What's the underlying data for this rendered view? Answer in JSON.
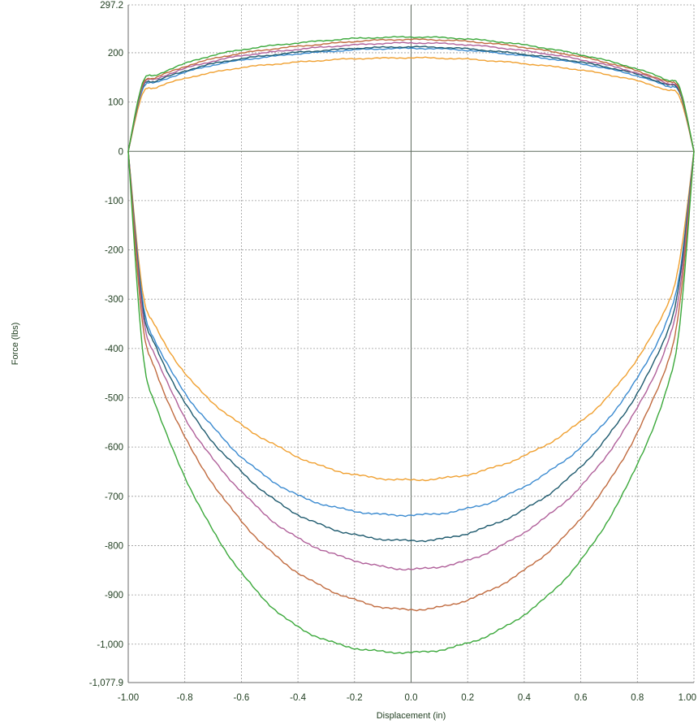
{
  "chart_data": {
    "type": "line",
    "title": "",
    "xlabel": "Displacement (in)",
    "ylabel": "Force (lbs)",
    "xlim": [
      -1.0,
      1.0
    ],
    "ylim": [
      -1077.9,
      297.2
    ],
    "x_ticks": [
      -1.0,
      -0.8,
      -0.6,
      -0.4,
      -0.2,
      0.0,
      0.2,
      0.4,
      0.6,
      0.8,
      1.0
    ],
    "x_tick_labels": [
      "-1.00",
      "-0.8",
      "-0.6",
      "-0.4",
      "-0.2",
      "0.0",
      "0.2",
      "0.4",
      "0.6",
      "0.8",
      "1.00"
    ],
    "y_ticks": [
      297.2,
      200,
      100,
      0,
      -100,
      -200,
      -300,
      -400,
      -500,
      -600,
      -700,
      -800,
      -900,
      -1000,
      -1077.9
    ],
    "y_tick_labels": [
      "297.2",
      "200",
      "100",
      "0",
      "-100",
      "-200",
      "-300",
      "-400",
      "-500",
      "-600",
      "-700",
      "-800",
      "-900",
      "-1,000",
      "-1,077.9"
    ],
    "grid": true,
    "legend": "none",
    "series": [
      {
        "color": "#f0a030",
        "x": [
          -1.0,
          -0.95,
          -0.9,
          -0.8,
          -0.7,
          -0.6,
          -0.5,
          -0.4,
          -0.3,
          -0.2,
          -0.1,
          0.0,
          0.1,
          0.2,
          0.3,
          0.4,
          0.5,
          0.6,
          0.7,
          0.8,
          0.9,
          0.95,
          1.0
        ],
        "rebound": [
          0,
          115,
          130,
          148,
          160,
          170,
          176,
          181,
          185,
          188,
          189,
          190,
          189,
          187,
          183,
          178,
          172,
          165,
          155,
          143,
          125,
          110,
          0
        ],
        "compression": [
          0,
          -280,
          -360,
          -450,
          -510,
          -555,
          -590,
          -620,
          -642,
          -656,
          -664,
          -667,
          -664,
          -656,
          -640,
          -618,
          -588,
          -548,
          -495,
          -420,
          -320,
          -220,
          0
        ]
      },
      {
        "color": "#3a8ad0",
        "x": [
          -1.0,
          -0.95,
          -0.9,
          -0.8,
          -0.7,
          -0.6,
          -0.5,
          -0.4,
          -0.3,
          -0.2,
          -0.1,
          0.0,
          0.1,
          0.2,
          0.3,
          0.4,
          0.5,
          0.6,
          0.7,
          0.8,
          0.9,
          0.95,
          1.0
        ],
        "rebound": [
          0,
          125,
          140,
          160,
          175,
          185,
          192,
          198,
          202,
          206,
          208,
          209,
          208,
          205,
          200,
          194,
          187,
          178,
          167,
          153,
          133,
          118,
          0
        ],
        "compression": [
          0,
          -300,
          -390,
          -490,
          -560,
          -620,
          -665,
          -698,
          -718,
          -730,
          -737,
          -738,
          -735,
          -725,
          -708,
          -680,
          -645,
          -600,
          -540,
          -460,
          -350,
          -245,
          0
        ]
      },
      {
        "color": "#1e5a6e",
        "x": [
          -1.0,
          -0.95,
          -0.9,
          -0.8,
          -0.7,
          -0.6,
          -0.5,
          -0.4,
          -0.3,
          -0.2,
          -0.1,
          0.0,
          0.1,
          0.2,
          0.3,
          0.4,
          0.5,
          0.6,
          0.7,
          0.8,
          0.9,
          0.95,
          1.0
        ],
        "rebound": [
          0,
          128,
          143,
          163,
          178,
          188,
          195,
          201,
          205,
          209,
          211,
          212,
          211,
          208,
          203,
          197,
          190,
          181,
          170,
          156,
          136,
          120,
          0
        ],
        "compression": [
          0,
          -310,
          -400,
          -510,
          -590,
          -650,
          -700,
          -737,
          -762,
          -778,
          -787,
          -790,
          -787,
          -775,
          -755,
          -727,
          -690,
          -640,
          -575,
          -490,
          -375,
          -260,
          0
        ]
      },
      {
        "color": "#b0609a",
        "x": [
          -1.0,
          -0.95,
          -0.9,
          -0.8,
          -0.7,
          -0.6,
          -0.5,
          -0.4,
          -0.3,
          -0.2,
          -0.1,
          0.0,
          0.1,
          0.2,
          0.3,
          0.4,
          0.5,
          0.6,
          0.7,
          0.8,
          0.9,
          0.95,
          1.0
        ],
        "rebound": [
          0,
          131,
          147,
          168,
          183,
          194,
          201,
          207,
          212,
          216,
          219,
          220,
          219,
          216,
          211,
          204,
          196,
          186,
          174,
          159,
          139,
          122,
          0
        ],
        "compression": [
          0,
          -325,
          -420,
          -540,
          -625,
          -690,
          -745,
          -785,
          -812,
          -830,
          -843,
          -848,
          -843,
          -830,
          -806,
          -773,
          -732,
          -680,
          -610,
          -520,
          -400,
          -280,
          0
        ]
      },
      {
        "color": "#c06a3e",
        "x": [
          -1.0,
          -0.95,
          -0.9,
          -0.8,
          -0.7,
          -0.6,
          -0.5,
          -0.4,
          -0.3,
          -0.2,
          -0.1,
          0.0,
          0.1,
          0.2,
          0.3,
          0.4,
          0.5,
          0.6,
          0.7,
          0.8,
          0.9,
          0.95,
          1.0
        ],
        "rebound": [
          0,
          133,
          150,
          172,
          188,
          199,
          207,
          213,
          218,
          223,
          226,
          227,
          226,
          223,
          218,
          211,
          202,
          192,
          179,
          163,
          142,
          125,
          0
        ],
        "compression": [
          0,
          -345,
          -450,
          -580,
          -675,
          -750,
          -810,
          -855,
          -887,
          -910,
          -925,
          -930,
          -925,
          -910,
          -885,
          -850,
          -805,
          -745,
          -670,
          -570,
          -440,
          -310,
          0
        ]
      },
      {
        "color": "#3aa83a",
        "x": [
          -1.0,
          -0.95,
          -0.9,
          -0.8,
          -0.7,
          -0.6,
          -0.5,
          -0.4,
          -0.3,
          -0.2,
          -0.1,
          0.0,
          0.1,
          0.2,
          0.3,
          0.4,
          0.5,
          0.6,
          0.7,
          0.8,
          0.9,
          0.95,
          1.0
        ],
        "rebound": [
          0,
          138,
          155,
          178,
          195,
          206,
          214,
          220,
          225,
          229,
          231,
          232,
          231,
          228,
          223,
          216,
          207,
          196,
          183,
          167,
          146,
          128,
          0
        ],
        "compression": [
          0,
          -400,
          -520,
          -660,
          -770,
          -855,
          -920,
          -965,
          -992,
          -1008,
          -1015,
          -1017,
          -1012,
          -998,
          -975,
          -940,
          -893,
          -830,
          -745,
          -635,
          -490,
          -350,
          0
        ]
      }
    ]
  }
}
